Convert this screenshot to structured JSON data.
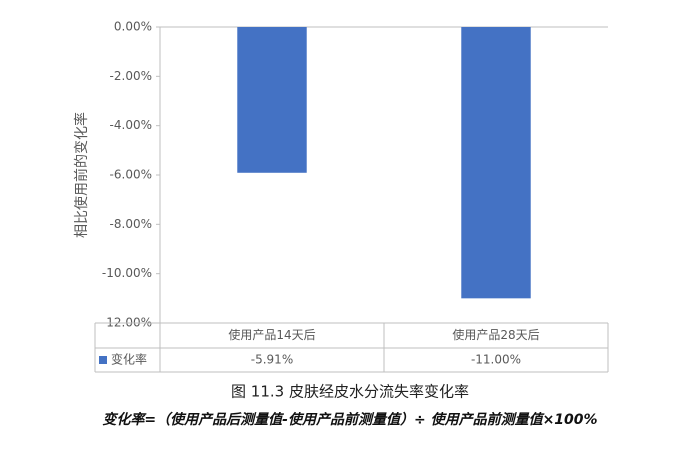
{
  "chart_data": {
    "type": "bar",
    "y_label": "相比使用前的变化率",
    "categories": [
      "使用产品14天后",
      "使用产品28天后"
    ],
    "series": [
      {
        "name": "变化率",
        "color": "#4472c4",
        "values": [
          -5.91,
          -11.0
        ],
        "value_labels": [
          "-5.91%",
          "-11.00%"
        ]
      }
    ],
    "ylim": [
      -12,
      0
    ],
    "yticks": [
      {
        "value": 0,
        "label": "0.00%"
      },
      {
        "value": -2,
        "label": "-2.00%"
      },
      {
        "value": -4,
        "label": "-4.00%"
      },
      {
        "value": -6,
        "label": "-6.00%"
      },
      {
        "value": -8,
        "label": "-8.00%"
      },
      {
        "value": -10,
        "label": "-10.00%"
      },
      {
        "value": -12,
        "label": "-12.00%"
      }
    ],
    "caption": "图 11.3 皮肤经皮水分流失率变化率",
    "note": "变化率=（使用产品后测量值-使用产品前测量值）÷ 使用产品前测量值×100%"
  }
}
